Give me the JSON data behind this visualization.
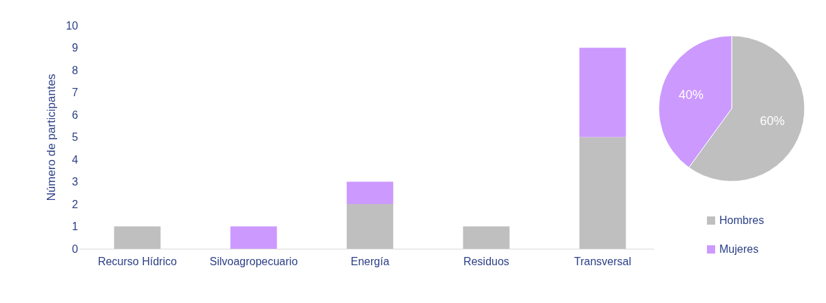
{
  "chart_data": [
    {
      "type": "bar",
      "stacked": true,
      "ylabel": "Número de participantes",
      "categories": [
        "Recurso Hídrico",
        "Silvoagropecuario",
        "Energía",
        "Residuos",
        "Transversal"
      ],
      "series": [
        {
          "color": "#bfbfbf",
          "values": [
            1,
            0,
            2,
            1,
            5
          ]
        },
        {
          "color": "#cc99ff",
          "values": [
            0,
            1,
            1,
            0,
            4
          ]
        }
      ],
      "ylim": [
        0,
        10
      ],
      "yticks": [
        0,
        1,
        2,
        3,
        4,
        5,
        6,
        7,
        8,
        9,
        10
      ],
      "grid": false
    },
    {
      "type": "pie",
      "categories": [
        "Hombres",
        "Mujeres"
      ],
      "values": [
        60,
        40
      ],
      "colors": [
        "#bfbfbf",
        "#cc99ff"
      ],
      "value_labels": [
        "60%",
        "40%"
      ],
      "legend": "bottom"
    }
  ]
}
